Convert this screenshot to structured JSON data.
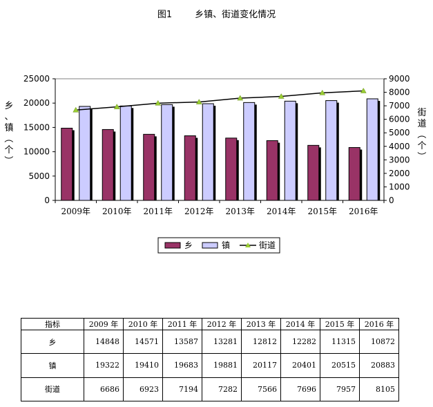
{
  "title": "图1        乡镇、街道变化情况",
  "chart_data": {
    "type": "bar+line",
    "categories": [
      "2009年",
      "2010年",
      "2011年",
      "2012年",
      "2013年",
      "2014年",
      "2015年",
      "2016年"
    ],
    "series": [
      {
        "name": "乡",
        "type": "bar",
        "axis": "left",
        "color": "#993366",
        "values": [
          14848,
          14571,
          13587,
          13281,
          12812,
          12282,
          11315,
          10872
        ]
      },
      {
        "name": "镇",
        "type": "bar",
        "axis": "left",
        "color": "#ccccff",
        "values": [
          19322,
          19410,
          19683,
          19881,
          20117,
          20401,
          20515,
          20883
        ]
      },
      {
        "name": "街道",
        "type": "line",
        "axis": "right",
        "color": "#000000",
        "marker_color": "#99cc33",
        "values": [
          6686,
          6923,
          7194,
          7282,
          7566,
          7696,
          7957,
          8105
        ]
      }
    ],
    "y_left": {
      "label": "乡、镇（个）",
      "range": [
        0,
        25000
      ],
      "ticks": [
        0,
        5000,
        10000,
        15000,
        20000,
        25000
      ]
    },
    "y_right": {
      "label": "街道（个）",
      "range": [
        0,
        9000
      ],
      "ticks": [
        0,
        1000,
        2000,
        3000,
        4000,
        5000,
        6000,
        7000,
        8000,
        9000
      ]
    },
    "legend_position": "bottom",
    "grid": false
  },
  "table": {
    "header_label": "指标",
    "columns": [
      "2009 年",
      "2010 年",
      "2011 年",
      "2012 年",
      "2013 年",
      "2014 年",
      "2015 年",
      "2016 年"
    ],
    "rows": [
      {
        "name": "乡",
        "values": [
          "14848",
          "14571",
          "13587",
          "13281",
          "12812",
          "12282",
          "11315",
          "10872"
        ]
      },
      {
        "name": "镇",
        "values": [
          "19322",
          "19410",
          "19683",
          "19881",
          "20117",
          "20401",
          "20515",
          "20883"
        ]
      },
      {
        "name": "街道",
        "values": [
          "6686",
          "6923",
          "7194",
          "7282",
          "7566",
          "7696",
          "7957",
          "8105"
        ]
      }
    ]
  }
}
